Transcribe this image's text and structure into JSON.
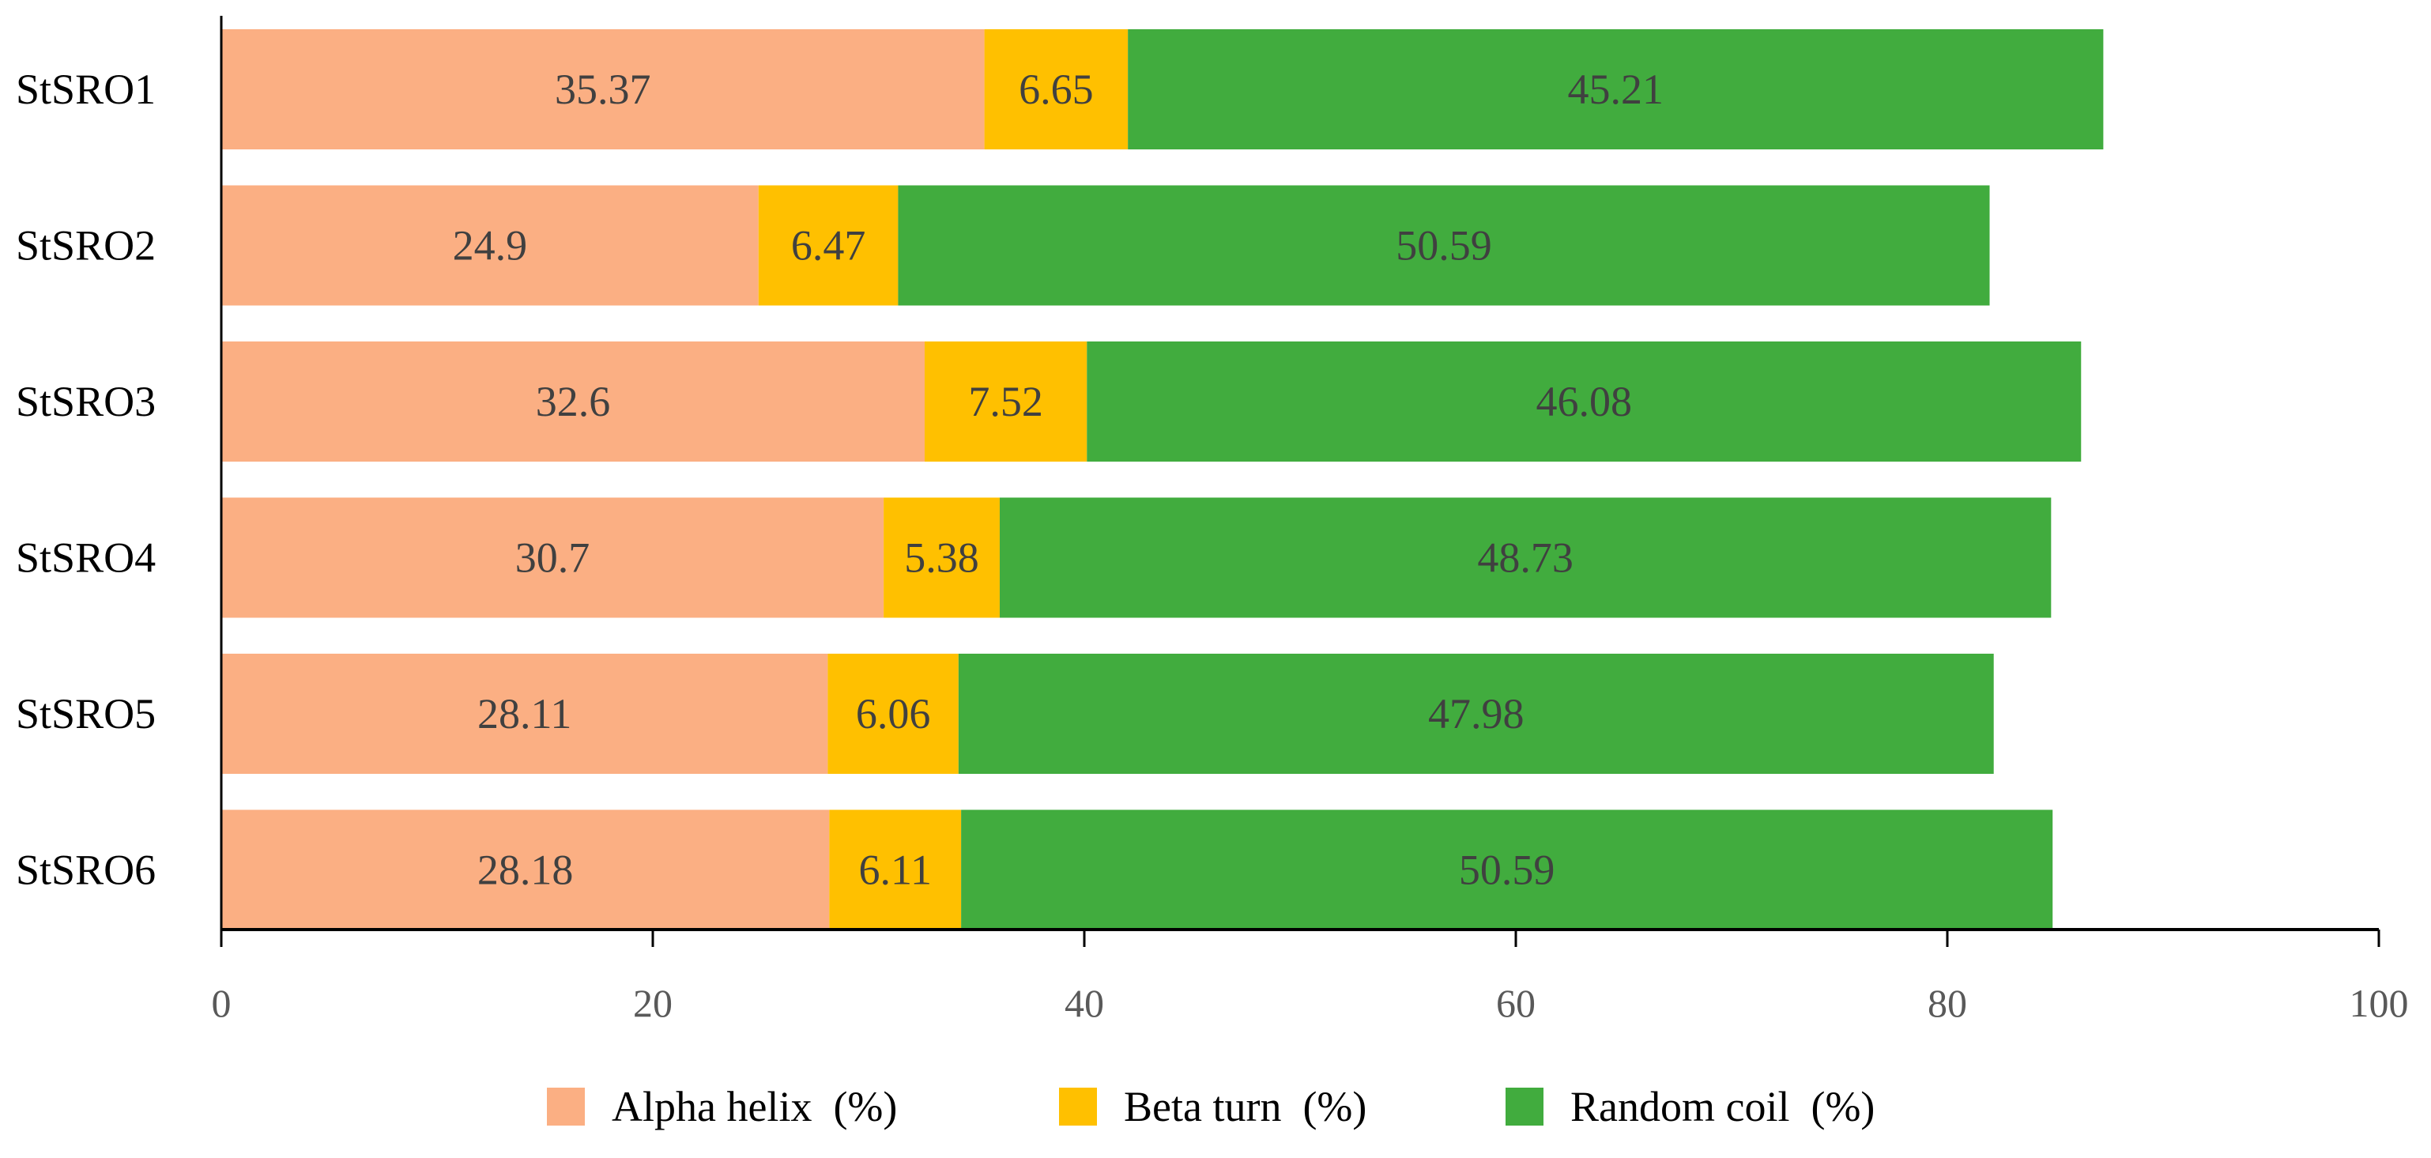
{
  "chart_data": {
    "type": "bar",
    "orientation": "horizontal",
    "stacked": true,
    "title": "",
    "xlabel": "",
    "ylabel": "",
    "xlim": [
      0,
      100
    ],
    "xticks": [
      0,
      20,
      40,
      60,
      80,
      100
    ],
    "grid": false,
    "legend_position": "bottom",
    "categories": [
      "StSRO1",
      "StSRO2",
      "StSRO3",
      "StSRO4",
      "StSRO5",
      "StSRO6"
    ],
    "series": [
      {
        "name": "Alpha helix  (%)",
        "color": "#FBAF83",
        "values": [
          35.37,
          24.9,
          32.6,
          30.7,
          28.11,
          28.18
        ],
        "labels": [
          "35.37",
          "24.9",
          "32.6",
          "30.7",
          "28.11",
          "28.18"
        ]
      },
      {
        "name": "Beta turn  (%)",
        "color": "#FFC000",
        "values": [
          6.65,
          6.47,
          7.52,
          5.38,
          6.06,
          6.11
        ],
        "labels": [
          "6.65",
          "6.47",
          "7.52",
          "5.38",
          "6.06",
          "6.11"
        ]
      },
      {
        "name": "Random coil  (%)",
        "color": "#41AC3E",
        "values": [
          45.21,
          50.59,
          46.08,
          48.73,
          47.98,
          50.59
        ],
        "labels": [
          "45.21",
          "50.59",
          "46.08",
          "48.73",
          "47.98",
          "50.59"
        ]
      }
    ]
  }
}
